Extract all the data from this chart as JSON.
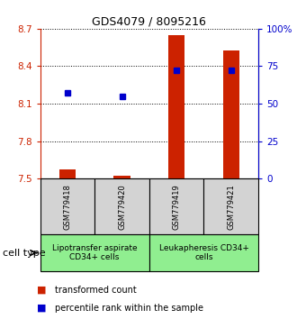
{
  "title": "GDS4079 / 8095216",
  "samples": [
    "GSM779418",
    "GSM779420",
    "GSM779419",
    "GSM779421"
  ],
  "red_values": [
    7.573,
    7.522,
    8.648,
    8.525
  ],
  "blue_percentiles": [
    57,
    55,
    72,
    72
  ],
  "ylim_left": [
    7.5,
    8.7
  ],
  "ylim_right": [
    0,
    100
  ],
  "yticks_left": [
    7.5,
    7.8,
    8.1,
    8.4,
    8.7
  ],
  "yticks_left_labels": [
    "7.5",
    "7.8",
    "8.1",
    "8.4",
    "8.7"
  ],
  "yticks_right": [
    0,
    25,
    50,
    75,
    100
  ],
  "yticks_right_labels": [
    "0",
    "25",
    "50",
    "75",
    "100%"
  ],
  "bar_bottom": 7.5,
  "red_color": "#cc2200",
  "blue_color": "#0000cc",
  "group1_label": "Lipotransfer aspirate\nCD34+ cells",
  "group2_label": "Leukapheresis CD34+\ncells",
  "sample_bg": "#d3d3d3",
  "group1_bg": "#90ee90",
  "group2_bg": "#90ee90",
  "legend_red": "transformed count",
  "legend_blue": "percentile rank within the sample",
  "cell_type_label": "cell type",
  "bar_width": 0.3,
  "title_fontsize": 9,
  "tick_fontsize": 7.5,
  "sample_fontsize": 6,
  "group_fontsize": 6.5,
  "legend_fontsize": 7
}
